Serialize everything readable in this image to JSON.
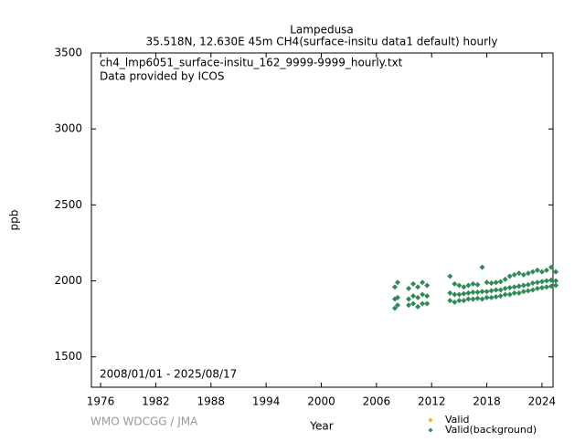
{
  "chart_data": {
    "type": "scatter",
    "title": "Lampedusa",
    "subtitle": "35.518N, 12.630E 45m    CH4(surface-insitu data1 default) hourly",
    "annotations": [
      "ch4_lmp6051_surface-insitu_162_9999-9999_hourly.txt",
      "Data provided by ICOS",
      "2008/01/01 - 2025/08/17",
      "WMO WDCGG / JMA"
    ],
    "xlabel": "Year",
    "ylabel": "ppb",
    "xlim": [
      1975,
      2025.2
    ],
    "xticks": [
      1976,
      1982,
      1988,
      1994,
      2000,
      2006,
      2012,
      2018,
      2024
    ],
    "ylim": [
      1300,
      3500
    ],
    "yticks": [
      1500,
      2000,
      2500,
      3000,
      3500
    ],
    "grid": false,
    "legend": "bottom-right",
    "series": [
      {
        "name": "Valid",
        "color": "#e8b800",
        "x": [],
        "values": []
      },
      {
        "name": "Valid(background)",
        "color": "#2e8b57",
        "x": [
          2008.0,
          2008.0,
          2008.0,
          2008.3,
          2008.3,
          2008.3,
          2009.5,
          2009.5,
          2009.5,
          2010.0,
          2010.0,
          2010.0,
          2010.5,
          2010.5,
          2010.5,
          2011.0,
          2011.0,
          2011.0,
          2011.5,
          2011.5,
          2011.5,
          2014.0,
          2014.0,
          2014.0,
          2014.5,
          2014.5,
          2014.5,
          2015.0,
          2015.0,
          2015.0,
          2015.5,
          2015.5,
          2015.5,
          2016.0,
          2016.0,
          2016.0,
          2016.5,
          2016.5,
          2016.5,
          2017.0,
          2017.0,
          2017.0,
          2017.5,
          2017.5,
          2017.5,
          2018.0,
          2018.0,
          2018.0,
          2018.5,
          2018.5,
          2018.5,
          2019.0,
          2019.0,
          2019.0,
          2019.5,
          2019.5,
          2019.5,
          2020.0,
          2020.0,
          2020.0,
          2020.5,
          2020.5,
          2020.5,
          2021.0,
          2021.0,
          2021.0,
          2021.5,
          2021.5,
          2021.5,
          2022.0,
          2022.0,
          2022.0,
          2022.5,
          2022.5,
          2022.5,
          2023.0,
          2023.0,
          2023.0,
          2023.5,
          2023.5,
          2023.5,
          2024.0,
          2024.0,
          2024.0,
          2024.5,
          2024.5,
          2024.5,
          2025.0,
          2025.0,
          2025.0,
          2025.5,
          2025.5,
          2025.5
        ],
        "values": [
          1820,
          1880,
          1960,
          1840,
          1890,
          1990,
          1840,
          1880,
          1950,
          1850,
          1900,
          1980,
          1830,
          1890,
          1960,
          1850,
          1910,
          1990,
          1850,
          1900,
          1970,
          1870,
          1920,
          2030,
          1860,
          1910,
          1980,
          1870,
          1910,
          1970,
          1870,
          1915,
          1960,
          1880,
          1920,
          1970,
          1880,
          1925,
          1980,
          1885,
          1925,
          1975,
          1880,
          1930,
          2090,
          1890,
          1930,
          1990,
          1890,
          1935,
          1985,
          1895,
          1940,
          1990,
          1900,
          1940,
          1995,
          1910,
          1950,
          2010,
          1910,
          1955,
          2030,
          1920,
          1960,
          2040,
          1920,
          1965,
          2050,
          1930,
          1970,
          2040,
          1935,
          1975,
          2050,
          1940,
          1985,
          2060,
          1950,
          1990,
          2070,
          1955,
          1995,
          2060,
          1960,
          2000,
          2070,
          1965,
          2005,
          2090,
          1970,
          2000,
          2060
        ]
      }
    ]
  }
}
